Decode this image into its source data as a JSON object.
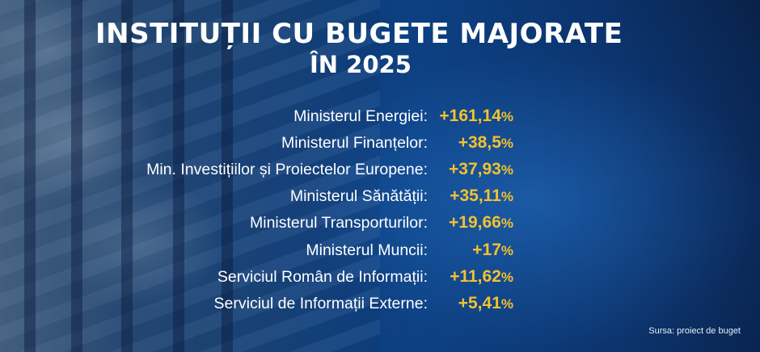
{
  "title": {
    "line1": "INSTITUȚII CU BUGETE MAJORATE",
    "line2": "ÎN 2025"
  },
  "rows": [
    {
      "label": "Ministerul Energiei:",
      "value": "+161,14",
      "unit": "%"
    },
    {
      "label": "Ministerul Finanțelor:",
      "value": "+38,5",
      "unit": "%"
    },
    {
      "label": "Min. Investițiilor și Proiectelor Europene:",
      "value": "+37,93",
      "unit": "%"
    },
    {
      "label": "Ministerul Sănătății:",
      "value": "+35,11",
      "unit": "%"
    },
    {
      "label": "Ministerul Transporturilor:",
      "value": "+19,66",
      "unit": "%"
    },
    {
      "label": "Ministerul Muncii:",
      "value": "+17",
      "unit": "%"
    },
    {
      "label": "Serviciul Român de Informații:",
      "value": "+11,62",
      "unit": "%"
    },
    {
      "label": "Serviciul de Informații Externe:",
      "value": "+5,41",
      "unit": "%"
    }
  ],
  "source": "Sursa: proiect de buget",
  "colors": {
    "value": "#f3c12f",
    "text": "#ffffff",
    "background": "#0b3f7e"
  }
}
